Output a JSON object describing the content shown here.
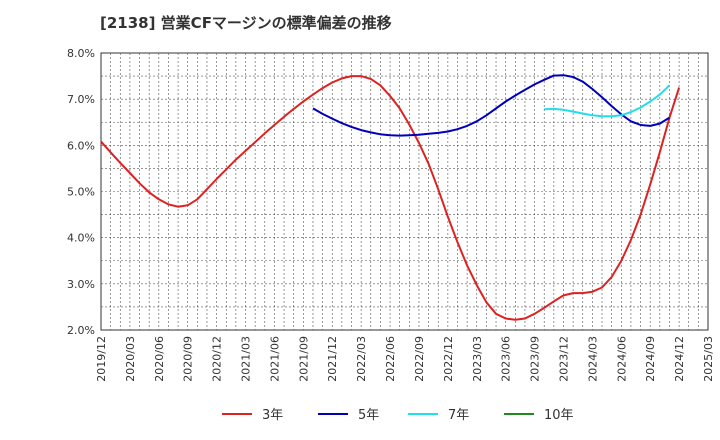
{
  "chart_data": {
    "type": "line",
    "title": "[2138]  営業CFマージンの標準偏差の推移",
    "ylim": [
      2.0,
      8.0
    ],
    "y_ticks": [
      "2.0%",
      "3.0%",
      "4.0%",
      "5.0%",
      "6.0%",
      "7.0%",
      "8.0%"
    ],
    "y_tick_values": [
      2.0,
      3.0,
      4.0,
      5.0,
      6.0,
      7.0,
      8.0
    ],
    "x_ticks": [
      "2019/12",
      "2020/03",
      "2020/06",
      "2020/09",
      "2020/12",
      "2021/03",
      "2021/06",
      "2021/09",
      "2021/12",
      "2022/03",
      "2022/06",
      "2022/09",
      "2022/12",
      "2023/03",
      "2023/06",
      "2023/09",
      "2023/12",
      "2024/03",
      "2024/06",
      "2024/09",
      "2024/12",
      "2025/03"
    ],
    "grid": true,
    "legend_position": "bottom",
    "series": [
      {
        "name": "3年",
        "color": "#dd2222",
        "points": [
          [
            "2019/12",
            6.08
          ],
          [
            "2020/01",
            5.85
          ],
          [
            "2020/02",
            5.62
          ],
          [
            "2020/03",
            5.4
          ],
          [
            "2020/04",
            5.18
          ],
          [
            "2020/05",
            4.98
          ],
          [
            "2020/06",
            4.83
          ],
          [
            "2020/07",
            4.72
          ],
          [
            "2020/08",
            4.67
          ],
          [
            "2020/09",
            4.7
          ],
          [
            "2020/10",
            4.83
          ],
          [
            "2020/11",
            5.05
          ],
          [
            "2020/12",
            5.27
          ],
          [
            "2021/01",
            5.48
          ],
          [
            "2021/02",
            5.69
          ],
          [
            "2021/03",
            5.88
          ],
          [
            "2021/04",
            6.07
          ],
          [
            "2021/05",
            6.26
          ],
          [
            "2021/06",
            6.44
          ],
          [
            "2021/07",
            6.62
          ],
          [
            "2021/08",
            6.79
          ],
          [
            "2021/09",
            6.95
          ],
          [
            "2021/10",
            7.1
          ],
          [
            "2021/11",
            7.24
          ],
          [
            "2021/12",
            7.36
          ],
          [
            "2022/01",
            7.45
          ],
          [
            "2022/02",
            7.5
          ],
          [
            "2022/03",
            7.5
          ],
          [
            "2022/04",
            7.44
          ],
          [
            "2022/05",
            7.3
          ],
          [
            "2022/06",
            7.07
          ],
          [
            "2022/07",
            6.8
          ],
          [
            "2022/08",
            6.45
          ],
          [
            "2022/09",
            6.05
          ],
          [
            "2022/10",
            5.6
          ],
          [
            "2022/11",
            5.05
          ],
          [
            "2022/12",
            4.45
          ],
          [
            "2023/01",
            3.9
          ],
          [
            "2023/02",
            3.4
          ],
          [
            "2023/03",
            2.97
          ],
          [
            "2023/04",
            2.6
          ],
          [
            "2023/05",
            2.35
          ],
          [
            "2023/06",
            2.25
          ],
          [
            "2023/07",
            2.22
          ],
          [
            "2023/08",
            2.25
          ],
          [
            "2023/09",
            2.35
          ],
          [
            "2023/10",
            2.48
          ],
          [
            "2023/11",
            2.62
          ],
          [
            "2023/12",
            2.75
          ],
          [
            "2024/01",
            2.8
          ],
          [
            "2024/02",
            2.8
          ],
          [
            "2024/03",
            2.83
          ],
          [
            "2024/04",
            2.92
          ],
          [
            "2024/05",
            3.15
          ],
          [
            "2024/06",
            3.5
          ],
          [
            "2024/07",
            3.95
          ],
          [
            "2024/08",
            4.5
          ],
          [
            "2024/09",
            5.15
          ],
          [
            "2024/10",
            5.85
          ],
          [
            "2024/11",
            6.6
          ],
          [
            "2024/12",
            7.25
          ]
        ]
      },
      {
        "name": "5年",
        "color": "#0000bb",
        "points": [
          [
            "2021/10",
            6.8
          ],
          [
            "2021/11",
            6.68
          ],
          [
            "2021/12",
            6.58
          ],
          [
            "2022/01",
            6.48
          ],
          [
            "2022/02",
            6.4
          ],
          [
            "2022/03",
            6.33
          ],
          [
            "2022/04",
            6.28
          ],
          [
            "2022/05",
            6.24
          ],
          [
            "2022/06",
            6.22
          ],
          [
            "2022/07",
            6.21
          ],
          [
            "2022/08",
            6.22
          ],
          [
            "2022/09",
            6.23
          ],
          [
            "2022/10",
            6.25
          ],
          [
            "2022/11",
            6.27
          ],
          [
            "2022/12",
            6.3
          ],
          [
            "2023/01",
            6.35
          ],
          [
            "2023/02",
            6.42
          ],
          [
            "2023/03",
            6.52
          ],
          [
            "2023/04",
            6.65
          ],
          [
            "2023/05",
            6.8
          ],
          [
            "2023/06",
            6.95
          ],
          [
            "2023/07",
            7.08
          ],
          [
            "2023/08",
            7.2
          ],
          [
            "2023/09",
            7.32
          ],
          [
            "2023/10",
            7.42
          ],
          [
            "2023/11",
            7.51
          ],
          [
            "2023/12",
            7.52
          ],
          [
            "2024/01",
            7.48
          ],
          [
            "2024/02",
            7.38
          ],
          [
            "2024/03",
            7.22
          ],
          [
            "2024/04",
            7.04
          ],
          [
            "2024/05",
            6.85
          ],
          [
            "2024/06",
            6.67
          ],
          [
            "2024/07",
            6.52
          ],
          [
            "2024/08",
            6.44
          ],
          [
            "2024/09",
            6.42
          ],
          [
            "2024/10",
            6.47
          ],
          [
            "2024/11",
            6.6
          ]
        ]
      },
      {
        "name": "7年",
        "color": "#22ddee",
        "points": [
          [
            "2023/10",
            6.78
          ],
          [
            "2023/11",
            6.79
          ],
          [
            "2023/12",
            6.77
          ],
          [
            "2024/01",
            6.73
          ],
          [
            "2024/02",
            6.69
          ],
          [
            "2024/03",
            6.65
          ],
          [
            "2024/04",
            6.63
          ],
          [
            "2024/05",
            6.63
          ],
          [
            "2024/06",
            6.65
          ],
          [
            "2024/07",
            6.72
          ],
          [
            "2024/08",
            6.82
          ],
          [
            "2024/09",
            6.95
          ],
          [
            "2024/10",
            7.1
          ],
          [
            "2024/11",
            7.3
          ]
        ]
      },
      {
        "name": "10年",
        "color": "#228822",
        "points": []
      }
    ]
  }
}
